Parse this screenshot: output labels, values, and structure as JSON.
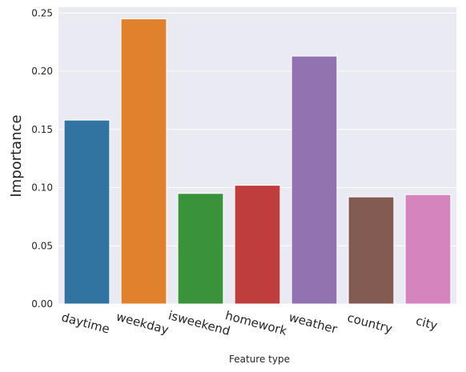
{
  "chart_data": {
    "type": "bar",
    "categories": [
      "daytime",
      "weekday",
      "isweekend",
      "homework",
      "weather",
      "country",
      "city"
    ],
    "values": [
      0.158,
      0.245,
      0.095,
      0.102,
      0.213,
      0.092,
      0.094
    ],
    "colors": [
      "#3274a1",
      "#e1812c",
      "#3a923a",
      "#c03d3e",
      "#9372b2",
      "#845b53",
      "#d684bd"
    ],
    "xlabel": "Feature type",
    "ylabel": "Importance",
    "ylim": [
      0,
      0.255
    ],
    "yticks": [
      0.0,
      0.05,
      0.1,
      0.15,
      0.2,
      0.25
    ],
    "ytick_labels": [
      "0.00",
      "0.05",
      "0.10",
      "0.15",
      "0.20",
      "0.25"
    ],
    "grid": true,
    "background": "#eaeaf2"
  }
}
